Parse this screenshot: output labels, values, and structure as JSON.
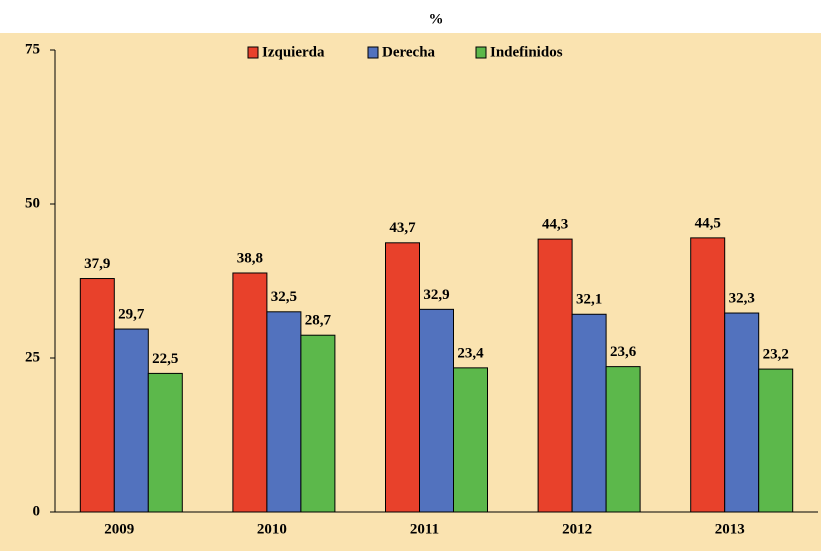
{
  "chart_data": {
    "type": "bar",
    "title": "%",
    "categories": [
      "2009",
      "2010",
      "2011",
      "2012",
      "2013"
    ],
    "series": [
      {
        "name": "Izquierda",
        "color": "#e8412b",
        "values": [
          37.9,
          38.8,
          43.7,
          44.3,
          44.5
        ],
        "value_labels": [
          "37,9",
          "38,8",
          "43,7",
          "44,3",
          "44,5"
        ]
      },
      {
        "name": "Derecha",
        "color": "#5272be",
        "values": [
          29.7,
          32.5,
          32.9,
          32.1,
          32.3
        ],
        "value_labels": [
          "29,7",
          "32,5",
          "32,9",
          "32,1",
          "32,3"
        ]
      },
      {
        "name": "Indefinidos",
        "color": "#5cb84b",
        "values": [
          22.5,
          28.7,
          23.4,
          23.6,
          23.2
        ],
        "value_labels": [
          "22,5",
          "28,7",
          "23,4",
          "23,6",
          "23,2"
        ]
      }
    ],
    "ylim": [
      0,
      75
    ],
    "yticks": [
      0,
      25,
      50,
      75
    ],
    "legend": "top"
  }
}
